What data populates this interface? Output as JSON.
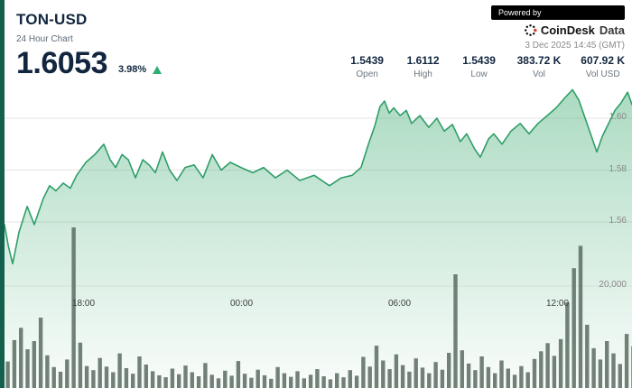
{
  "header": {
    "symbol": "TON-USD",
    "subtitle": "24 Hour Chart",
    "price": "1.6053",
    "change_pct": "3.98%",
    "change_direction": "up",
    "powered_by": "Powered by",
    "brand": "CoinDesk",
    "brand_suffix": "Data",
    "timestamp": "3 Dec 2025 14:45 (GMT)"
  },
  "stats": [
    {
      "value": "1.5439",
      "label": "Open"
    },
    {
      "value": "1.6112",
      "label": "High"
    },
    {
      "value": "1.5439",
      "label": "Low"
    },
    {
      "value": "383.72 K",
      "label": "Vol"
    },
    {
      "value": "607.92 K",
      "label": "Vol USD"
    }
  ],
  "colors": {
    "accent_green": "#2f9e68",
    "fill_green": "#56b582",
    "volume_bar": "#5f6f65",
    "stripe_green": "#13604c",
    "navy": "#12263f",
    "badge_bg": "#000000",
    "brand_red": "#d9442c",
    "grid": "#e3e3e3",
    "up_triangle": "#2fae73"
  },
  "chart_data": {
    "type": "area",
    "title": "TON-USD 24 Hour Chart",
    "x_unit": "hours_from_start (start ~14:45 GMT previous day)",
    "x_range_hours": 24,
    "price_ylim": [
      1.543,
      1.615
    ],
    "volume_ylim": [
      0,
      32000
    ],
    "grid": true,
    "legend": "none",
    "price_axis": {
      "ticks": [
        1.6,
        1.58,
        1.56
      ],
      "labels": [
        "1.60",
        "1.58",
        "1.56"
      ]
    },
    "volume_axis": {
      "ticks": [
        20000
      ],
      "labels": [
        "20,000"
      ]
    },
    "time_ticks": [
      {
        "t": 3.0,
        "label": "18:00"
      },
      {
        "t": 9.0,
        "label": "00:00"
      },
      {
        "t": 15.0,
        "label": "06:00"
      },
      {
        "t": 21.0,
        "label": "12:00"
      }
    ],
    "price_series": [
      [
        0.0,
        1.559
      ],
      [
        0.14,
        1.551
      ],
      [
        0.31,
        1.5439
      ],
      [
        0.55,
        1.556
      ],
      [
        0.86,
        1.566
      ],
      [
        1.13,
        1.559
      ],
      [
        1.47,
        1.569
      ],
      [
        1.71,
        1.574
      ],
      [
        1.95,
        1.572
      ],
      [
        2.23,
        1.575
      ],
      [
        2.5,
        1.573
      ],
      [
        2.74,
        1.578
      ],
      [
        3.09,
        1.583
      ],
      [
        3.43,
        1.586
      ],
      [
        3.77,
        1.59
      ],
      [
        4.01,
        1.584
      ],
      [
        4.22,
        1.581
      ],
      [
        4.46,
        1.586
      ],
      [
        4.7,
        1.584
      ],
      [
        4.97,
        1.577
      ],
      [
        5.25,
        1.584
      ],
      [
        5.49,
        1.582
      ],
      [
        5.73,
        1.579
      ],
      [
        6.0,
        1.587
      ],
      [
        6.27,
        1.58
      ],
      [
        6.55,
        1.576
      ],
      [
        6.86,
        1.581
      ],
      [
        7.2,
        1.582
      ],
      [
        7.54,
        1.577
      ],
      [
        7.89,
        1.586
      ],
      [
        8.23,
        1.58
      ],
      [
        8.57,
        1.583
      ],
      [
        8.98,
        1.581
      ],
      [
        9.43,
        1.579
      ],
      [
        9.84,
        1.581
      ],
      [
        10.29,
        1.577
      ],
      [
        10.73,
        1.58
      ],
      [
        11.21,
        1.576
      ],
      [
        11.76,
        1.578
      ],
      [
        12.34,
        1.574
      ],
      [
        12.79,
        1.577
      ],
      [
        13.2,
        1.578
      ],
      [
        13.54,
        1.581
      ],
      [
        13.82,
        1.59
      ],
      [
        14.06,
        1.597
      ],
      [
        14.26,
        1.6045
      ],
      [
        14.43,
        1.6066
      ],
      [
        14.61,
        1.602
      ],
      [
        14.78,
        1.604
      ],
      [
        15.02,
        1.601
      ],
      [
        15.26,
        1.603
      ],
      [
        15.46,
        1.598
      ],
      [
        15.77,
        1.601
      ],
      [
        16.11,
        1.5965
      ],
      [
        16.42,
        1.6
      ],
      [
        16.7,
        1.595
      ],
      [
        17.01,
        1.5976
      ],
      [
        17.31,
        1.591
      ],
      [
        17.55,
        1.594
      ],
      [
        17.86,
        1.588
      ],
      [
        18.07,
        1.585
      ],
      [
        18.38,
        1.592
      ],
      [
        18.58,
        1.594
      ],
      [
        18.89,
        1.59
      ],
      [
        19.23,
        1.595
      ],
      [
        19.58,
        1.598
      ],
      [
        19.92,
        1.594
      ],
      [
        20.26,
        1.598
      ],
      [
        20.61,
        1.601
      ],
      [
        20.95,
        1.604
      ],
      [
        21.29,
        1.608
      ],
      [
        21.57,
        1.611
      ],
      [
        21.81,
        1.607
      ],
      [
        22.05,
        1.6
      ],
      [
        22.29,
        1.593
      ],
      [
        22.49,
        1.587
      ],
      [
        22.7,
        1.593
      ],
      [
        22.94,
        1.598
      ],
      [
        23.18,
        1.603
      ],
      [
        23.42,
        1.606
      ],
      [
        23.66,
        1.61
      ],
      [
        23.83,
        1.6053
      ]
    ],
    "volume_interval_hours": 0.25,
    "volume_series": [
      5200,
      9400,
      11800,
      7600,
      9200,
      13800,
      6400,
      4100,
      3200,
      5600,
      31500,
      8900,
      4300,
      3500,
      5900,
      4200,
      3100,
      6800,
      3900,
      2800,
      6200,
      4600,
      3300,
      2500,
      2100,
      3800,
      2700,
      4400,
      3100,
      2300,
      4900,
      2600,
      1900,
      3400,
      2400,
      5300,
      2800,
      2000,
      3600,
      2500,
      1800,
      4100,
      2900,
      2200,
      3300,
      1900,
      2600,
      3700,
      2300,
      1700,
      2900,
      2100,
      3500,
      2400,
      6100,
      4200,
      8300,
      5400,
      3700,
      6600,
      4500,
      3200,
      5800,
      4000,
      2900,
      5100,
      3600,
      6900,
      22300,
      7400,
      4800,
      3500,
      6200,
      4100,
      2900,
      5400,
      3800,
      2600,
      4300,
      3100,
      5700,
      7200,
      8800,
      6300,
      9600,
      16800,
      23500,
      27900,
      12400,
      7800,
      5600,
      9200,
      6800,
      4700,
      10600,
      8200
    ]
  }
}
